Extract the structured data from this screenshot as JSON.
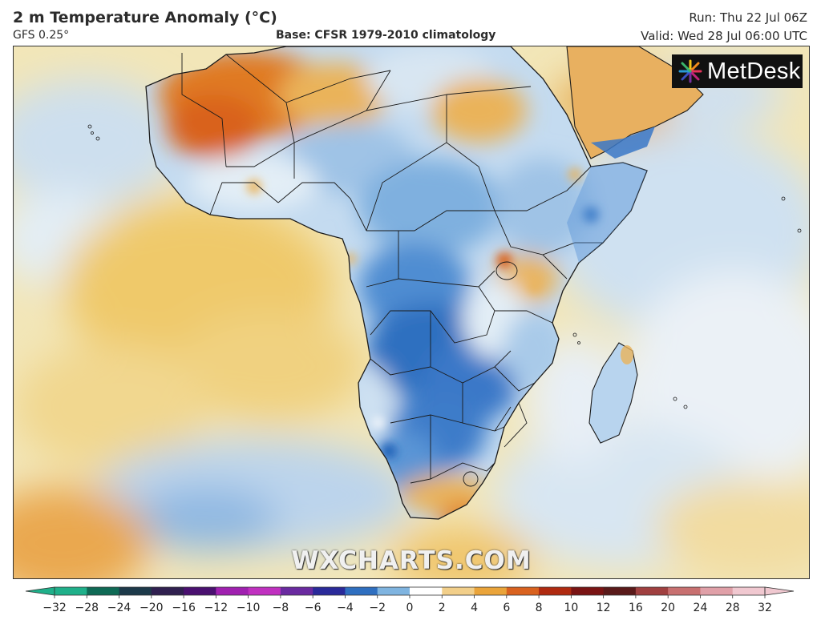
{
  "header": {
    "title": "2 m Temperature Anomaly (°C)",
    "model": "GFS 0.25°",
    "base": "Base: CFSR 1979-2010 climatology",
    "run": "Run: Thu 22 Jul 06Z",
    "valid": "Valid: Wed 28 Jul 06:00 UTC"
  },
  "branding": {
    "logo_text": "MetDesk",
    "watermark": "WXCHARTS.COM"
  },
  "legend": {
    "ticks": [
      "−32",
      "−28",
      "−24",
      "−20",
      "−16",
      "−12",
      "−10",
      "−8",
      "−6",
      "−4",
      "−2",
      "0",
      "2",
      "4",
      "6",
      "8",
      "10",
      "12",
      "16",
      "20",
      "24",
      "28",
      "32"
    ],
    "colors": [
      "#1fb08a",
      "#0f6a55",
      "#1d3a4a",
      "#302050",
      "#4a1070",
      "#a020b0",
      "#c030c0",
      "#6a2aa0",
      "#2a2a9a",
      "#2f6fc0",
      "#7fb4e0",
      "#ffffff",
      "#f2cf8a",
      "#eaa43a",
      "#d9621f",
      "#b02a10",
      "#7a1414",
      "#5a1a1a",
      "#a04040",
      "#c87070",
      "#e0a0a8",
      "#f0c8d0"
    ]
  },
  "colors": {
    "ocean_warm": "#f3e3a8",
    "ocean_cool": "#cfe0f0",
    "land_cold": "#5a95d6",
    "land_cool": "#bcd6ee",
    "land_warm": "#eab35a",
    "land_hot": "#e07a22",
    "border": "#1a1a1a"
  }
}
